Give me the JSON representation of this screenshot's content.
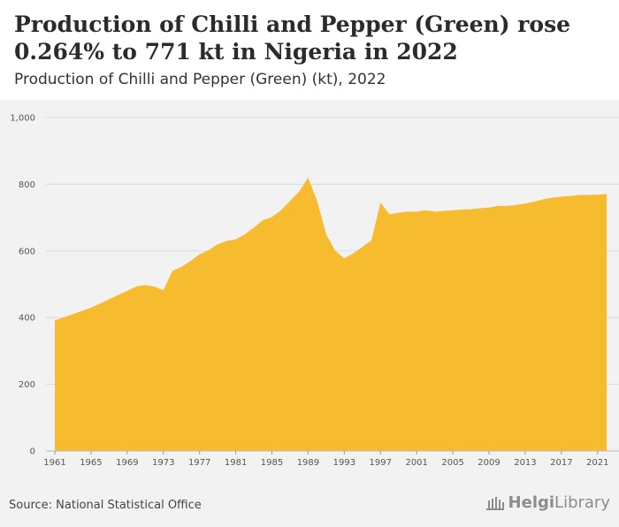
{
  "header": {
    "title": "Production of Chilli and Pepper (Green) rose 0.264% to 771 kt in Nigeria in 2022",
    "subtitle": "Production of Chilli and Pepper (Green) (kt), 2022"
  },
  "footer": {
    "source": "Source: National Statistical Office",
    "logo_text_bold": "Helgi",
    "logo_text": "Library"
  },
  "colors": {
    "area_fill": "#f7bb2f",
    "background": "#f2f2f2",
    "gridline": "#d9d9d9"
  },
  "chart_data": {
    "type": "area",
    "title": "",
    "xlabel": "",
    "ylabel": "",
    "xlim": [
      1961,
      2022
    ],
    "ylim": [
      0,
      1000
    ],
    "yticks": [
      0,
      200,
      400,
      600,
      800,
      1000
    ],
    "ytick_labels": [
      "0",
      "200",
      "400",
      "600",
      "800",
      "1,000"
    ],
    "xticks": [
      1961,
      1965,
      1969,
      1973,
      1977,
      1981,
      1985,
      1989,
      1993,
      1997,
      2001,
      2005,
      2009,
      2013,
      2017,
      2021
    ],
    "grid": true,
    "x": [
      1961,
      1962,
      1963,
      1964,
      1965,
      1966,
      1967,
      1968,
      1969,
      1970,
      1971,
      1972,
      1973,
      1974,
      1975,
      1976,
      1977,
      1978,
      1979,
      1980,
      1981,
      1982,
      1983,
      1984,
      1985,
      1986,
      1987,
      1988,
      1989,
      1990,
      1991,
      1992,
      1993,
      1994,
      1995,
      1996,
      1997,
      1998,
      1999,
      2000,
      2001,
      2002,
      2003,
      2004,
      2005,
      2006,
      2007,
      2008,
      2009,
      2010,
      2011,
      2012,
      2013,
      2014,
      2015,
      2016,
      2017,
      2018,
      2019,
      2020,
      2021,
      2022
    ],
    "values": [
      392,
      401,
      410,
      420,
      430,
      442,
      455,
      468,
      480,
      493,
      498,
      493,
      482,
      540,
      552,
      570,
      590,
      602,
      620,
      630,
      635,
      650,
      670,
      692,
      702,
      722,
      750,
      778,
      820,
      750,
      650,
      600,
      578,
      593,
      612,
      632,
      745,
      710,
      715,
      718,
      718,
      722,
      718,
      720,
      722,
      724,
      725,
      728,
      730,
      735,
      735,
      738,
      742,
      748,
      755,
      760,
      763,
      765,
      768,
      768,
      769,
      771
    ]
  }
}
